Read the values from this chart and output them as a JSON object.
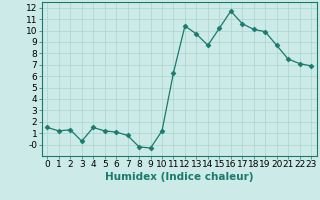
{
  "xlabel": "Humidex (Indice chaleur)",
  "x": [
    0,
    1,
    2,
    3,
    4,
    5,
    6,
    7,
    8,
    9,
    10,
    11,
    12,
    13,
    14,
    15,
    16,
    17,
    18,
    19,
    20,
    21,
    22,
    23
  ],
  "y": [
    1.5,
    1.2,
    1.3,
    0.3,
    1.5,
    1.2,
    1.1,
    0.8,
    -0.2,
    -0.3,
    1.2,
    6.3,
    10.4,
    9.7,
    8.7,
    10.2,
    11.7,
    10.6,
    10.1,
    9.9,
    8.7,
    7.5,
    7.1,
    6.9
  ],
  "line_color": "#1a7a6e",
  "marker": "D",
  "marker_size": 2.5,
  "bg_color": "#cceae7",
  "grid_major_color": "#aad4d0",
  "grid_minor_color": "#bde0dd",
  "ylim": [
    -1.0,
    12.5
  ],
  "xlim": [
    -0.5,
    23.5
  ],
  "yticks": [
    0,
    1,
    2,
    3,
    4,
    5,
    6,
    7,
    8,
    9,
    10,
    11,
    12
  ],
  "ytick_labels": [
    "-0",
    "1",
    "2",
    "3",
    "4",
    "5",
    "6",
    "7",
    "8",
    "9",
    "10",
    "11",
    "12"
  ],
  "xticks": [
    0,
    1,
    2,
    3,
    4,
    5,
    6,
    7,
    8,
    9,
    10,
    11,
    12,
    13,
    14,
    15,
    16,
    17,
    18,
    19,
    20,
    21,
    22,
    23
  ],
  "tick_fontsize": 6.5,
  "label_fontsize": 7.5,
  "tick_color": "#1a7a6e",
  "spine_color": "#1a7a6e"
}
